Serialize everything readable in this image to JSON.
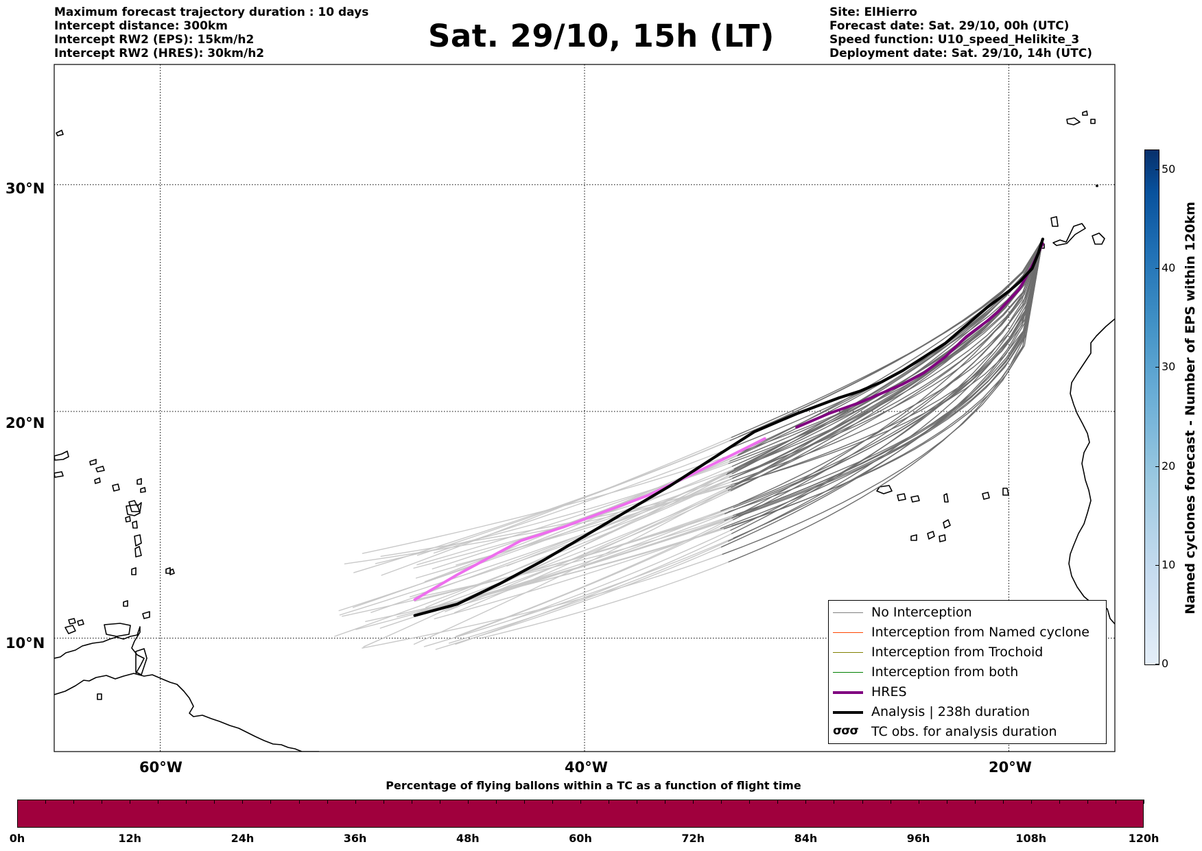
{
  "header_left": [
    "Maximum forecast trajectory duration : 10 days",
    "Intercept distance: 300km",
    "Intercept RW2 (EPS):  15km/h2",
    "Intercept RW2 (HRES): 30km/h2"
  ],
  "title": "Sat. 29/10, 15h (LT)",
  "header_right": [
    "Site: ElHierro",
    "Forecast date: Sat. 29/10, 00h (UTC)",
    "Speed function: U10_speed_Helikite_3",
    "Deployment date: Sat. 29/10, 14h (UTC)"
  ],
  "map": {
    "lat_labels": [
      "30°N",
      "20°N",
      "10°N"
    ],
    "lon_labels": [
      "60°W",
      "40°W",
      "20°W"
    ],
    "extent": {
      "lon_min": -65,
      "lon_max": -15,
      "lat_min": 5,
      "lat_max": 35.3
    },
    "gridlines": {
      "lon": [
        -60,
        -40,
        -20
      ],
      "lat": [
        10,
        20,
        30
      ]
    }
  },
  "legend": {
    "items": [
      {
        "label": "No Interception",
        "color": "#808080"
      },
      {
        "label": "Interception from Named cyclone",
        "color": "#ff4500"
      },
      {
        "label": "Interception from Trochoid",
        "color": "#808000"
      },
      {
        "label": "Interception from both",
        "color": "#008000"
      },
      {
        "label": "HRES",
        "color": "#800080"
      },
      {
        "label": "Analysis | 238h duration",
        "color": "#000000"
      },
      {
        "label": "TC obs. for analysis duration",
        "glyph": "σσσ"
      }
    ]
  },
  "colorbar_vertical": {
    "label": "Named cyclones forecast - Number of EPS within 120km",
    "ticks": [
      "0",
      "10",
      "20",
      "30",
      "40",
      "50"
    ],
    "tick_values": [
      0,
      10,
      20,
      30,
      40,
      50
    ],
    "max": 52,
    "colormap": "Blues"
  },
  "colorbar_horizontal": {
    "title": "Percentage of flying ballons within a TC as a function of flight time",
    "ticks": [
      "0h",
      "12h",
      "24h",
      "36h",
      "48h",
      "60h",
      "72h",
      "84h",
      "96h",
      "108h",
      "120h"
    ],
    "fill_color": "#a0003d",
    "minor_step_h": 3
  },
  "tracks": {
    "origin": {
      "lon": -18.4,
      "lat": 27.6
    },
    "analysis": [
      [
        -18.4,
        27.6
      ],
      [
        -18.6,
        27.0
      ],
      [
        -18.9,
        26.3
      ],
      [
        -19.5,
        25.7
      ],
      [
        -20.0,
        25.3
      ],
      [
        -21.0,
        24.6
      ],
      [
        -22.0,
        23.8
      ],
      [
        -23.0,
        23.0
      ],
      [
        -24.0,
        22.4
      ],
      [
        -25.0,
        21.8
      ],
      [
        -26.0,
        21.3
      ],
      [
        -27.0,
        20.9
      ],
      [
        -28.0,
        20.6
      ],
      [
        -30.0,
        19.9
      ],
      [
        -32.0,
        19.1
      ],
      [
        -34.0,
        17.9
      ],
      [
        -36.0,
        16.7
      ],
      [
        -38.0,
        15.6
      ],
      [
        -40.0,
        14.5
      ],
      [
        -42.0,
        13.4
      ],
      [
        -44.0,
        12.4
      ],
      [
        -46.0,
        11.5
      ],
      [
        -48.0,
        11.0
      ]
    ],
    "hres": [
      [
        -18.4,
        27.4
      ],
      [
        -18.8,
        26.6
      ],
      [
        -19.5,
        25.4
      ],
      [
        -20.5,
        24.4
      ],
      [
        -21.0,
        24.0
      ],
      [
        -22.0,
        23.3
      ],
      [
        -23.0,
        22.4
      ],
      [
        -24.0,
        21.7
      ],
      [
        -25.0,
        21.2
      ],
      [
        -26.0,
        20.8
      ],
      [
        -27.0,
        20.4
      ],
      [
        -28.5,
        19.9
      ],
      [
        -30.0,
        19.3
      ],
      [
        -31.5,
        18.8
      ],
      [
        -33.0,
        18.1
      ],
      [
        -35.0,
        17.2
      ],
      [
        -37.0,
        16.3
      ],
      [
        -39.0,
        15.6
      ],
      [
        -41.0,
        14.9
      ],
      [
        -43.0,
        14.3
      ],
      [
        -44.8,
        13.4
      ],
      [
        -46.0,
        12.8
      ],
      [
        -48.0,
        11.7
      ]
    ],
    "hres_pink_from_lon": -30.8,
    "ensemble_count": 50,
    "ensemble_light_segment_from_lon": -33.0
  }
}
